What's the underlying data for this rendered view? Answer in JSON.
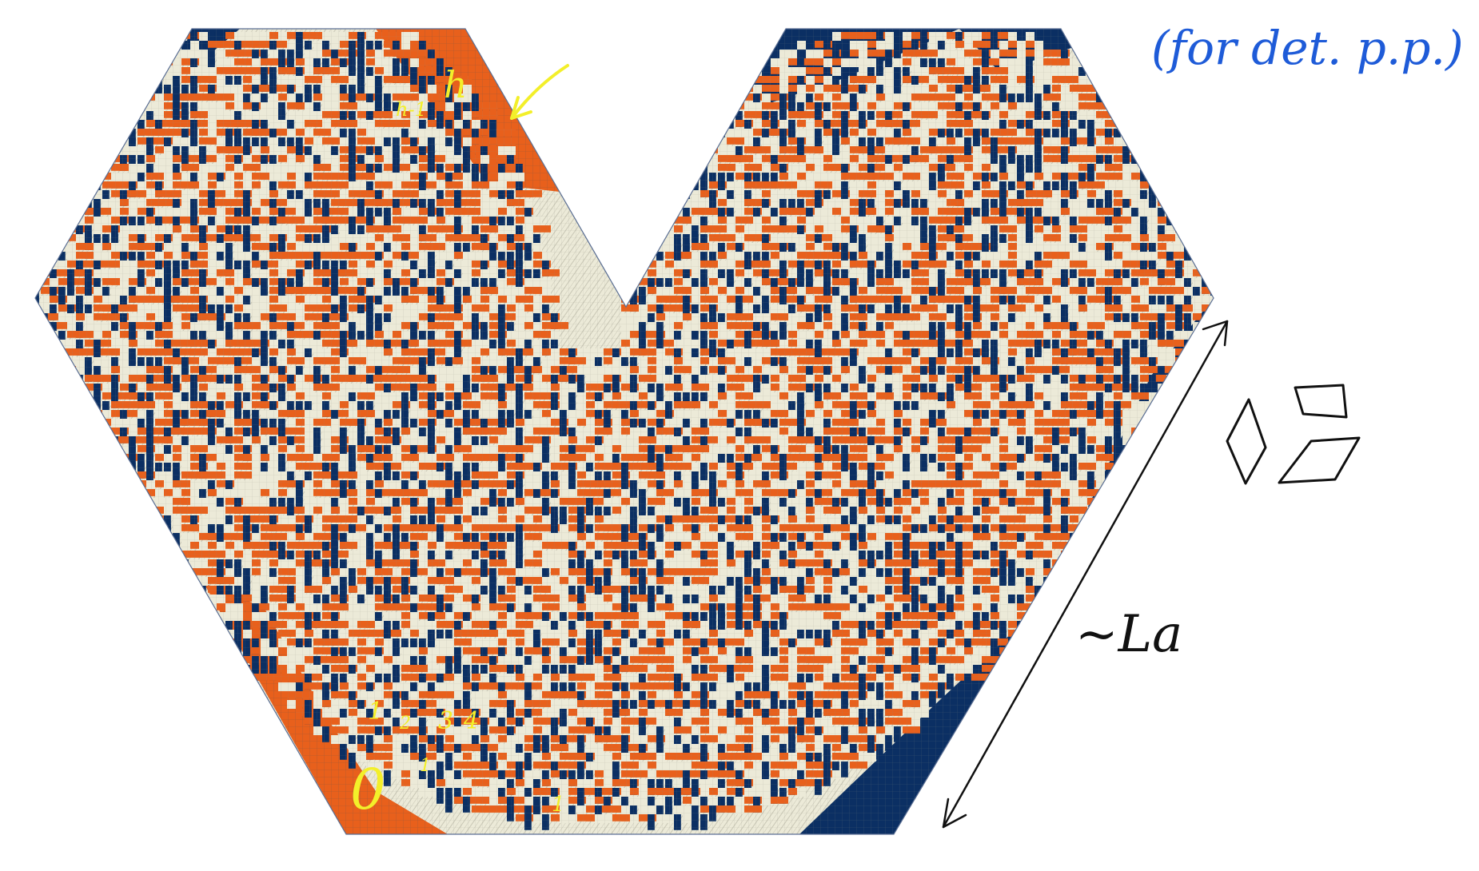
{
  "figure": {
    "palette": {
      "orange": "#E8601C",
      "navy": "#0B2F63",
      "cream": "#ECEAD8",
      "grid": "#8E8E84",
      "outline": "#5A6E93"
    },
    "tile_types": [
      "orange-horizontal",
      "navy-vertical",
      "cream-tilted"
    ],
    "random_seed_note": ""
  },
  "annotations": {
    "top_right_note": "(for det. p.p.)",
    "h_minus_one": "h-1",
    "h": "h",
    "length_label": "~La",
    "level_digits": [
      "1",
      "2",
      "3",
      "4"
    ],
    "small_one_a": "1",
    "small_one_b": "1",
    "zero": "0",
    "blue_ink": "#1E5BD8",
    "yellow_ink": "#F3EF2A",
    "black_ink": "#111111"
  }
}
